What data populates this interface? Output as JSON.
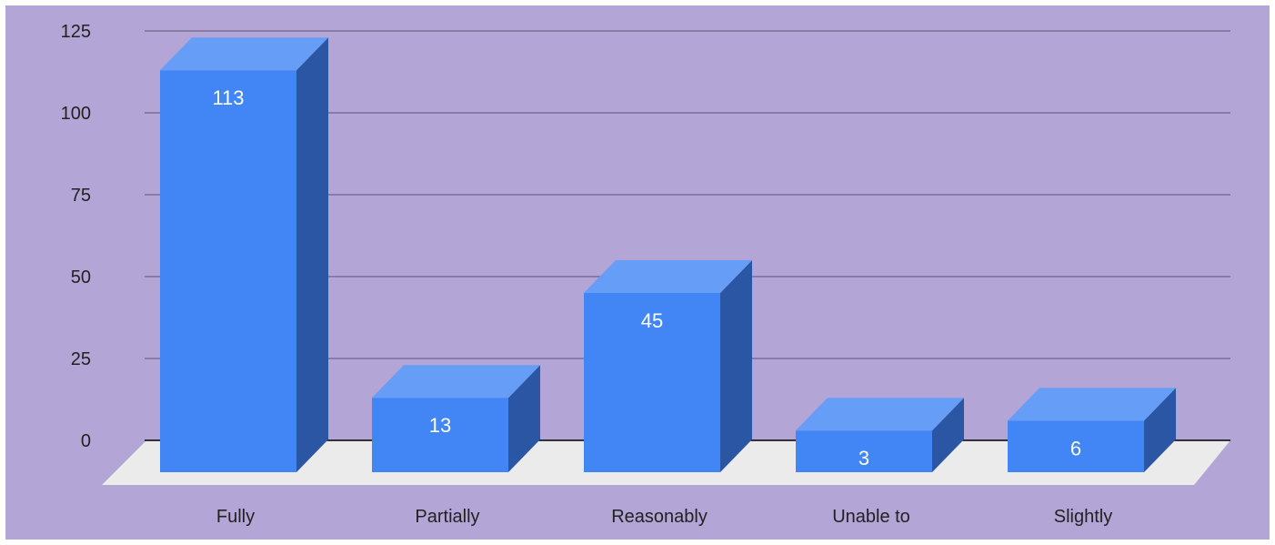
{
  "chart_data": {
    "type": "bar",
    "title": "",
    "xlabel": "",
    "ylabel": "",
    "categories": [
      "Fully",
      "Partially",
      "Reasonably",
      "Unable to",
      "Slightly"
    ],
    "values": [
      113,
      13,
      45,
      3,
      6
    ],
    "ylim": [
      0,
      125
    ],
    "yticks": [
      0,
      25,
      50,
      75,
      100,
      125
    ],
    "style": "3d-column",
    "grid": true,
    "legend": "none",
    "colors": {
      "background": "#b3a5d5",
      "bar_front": "#4285f4",
      "bar_top": "#669df6",
      "bar_side": "#2a56a3",
      "floor": "#ebebeb",
      "gridline": "#6d6388",
      "label_inside": "#ffffff",
      "label_outside": "#4285f4",
      "title": "#1a5dab"
    }
  }
}
